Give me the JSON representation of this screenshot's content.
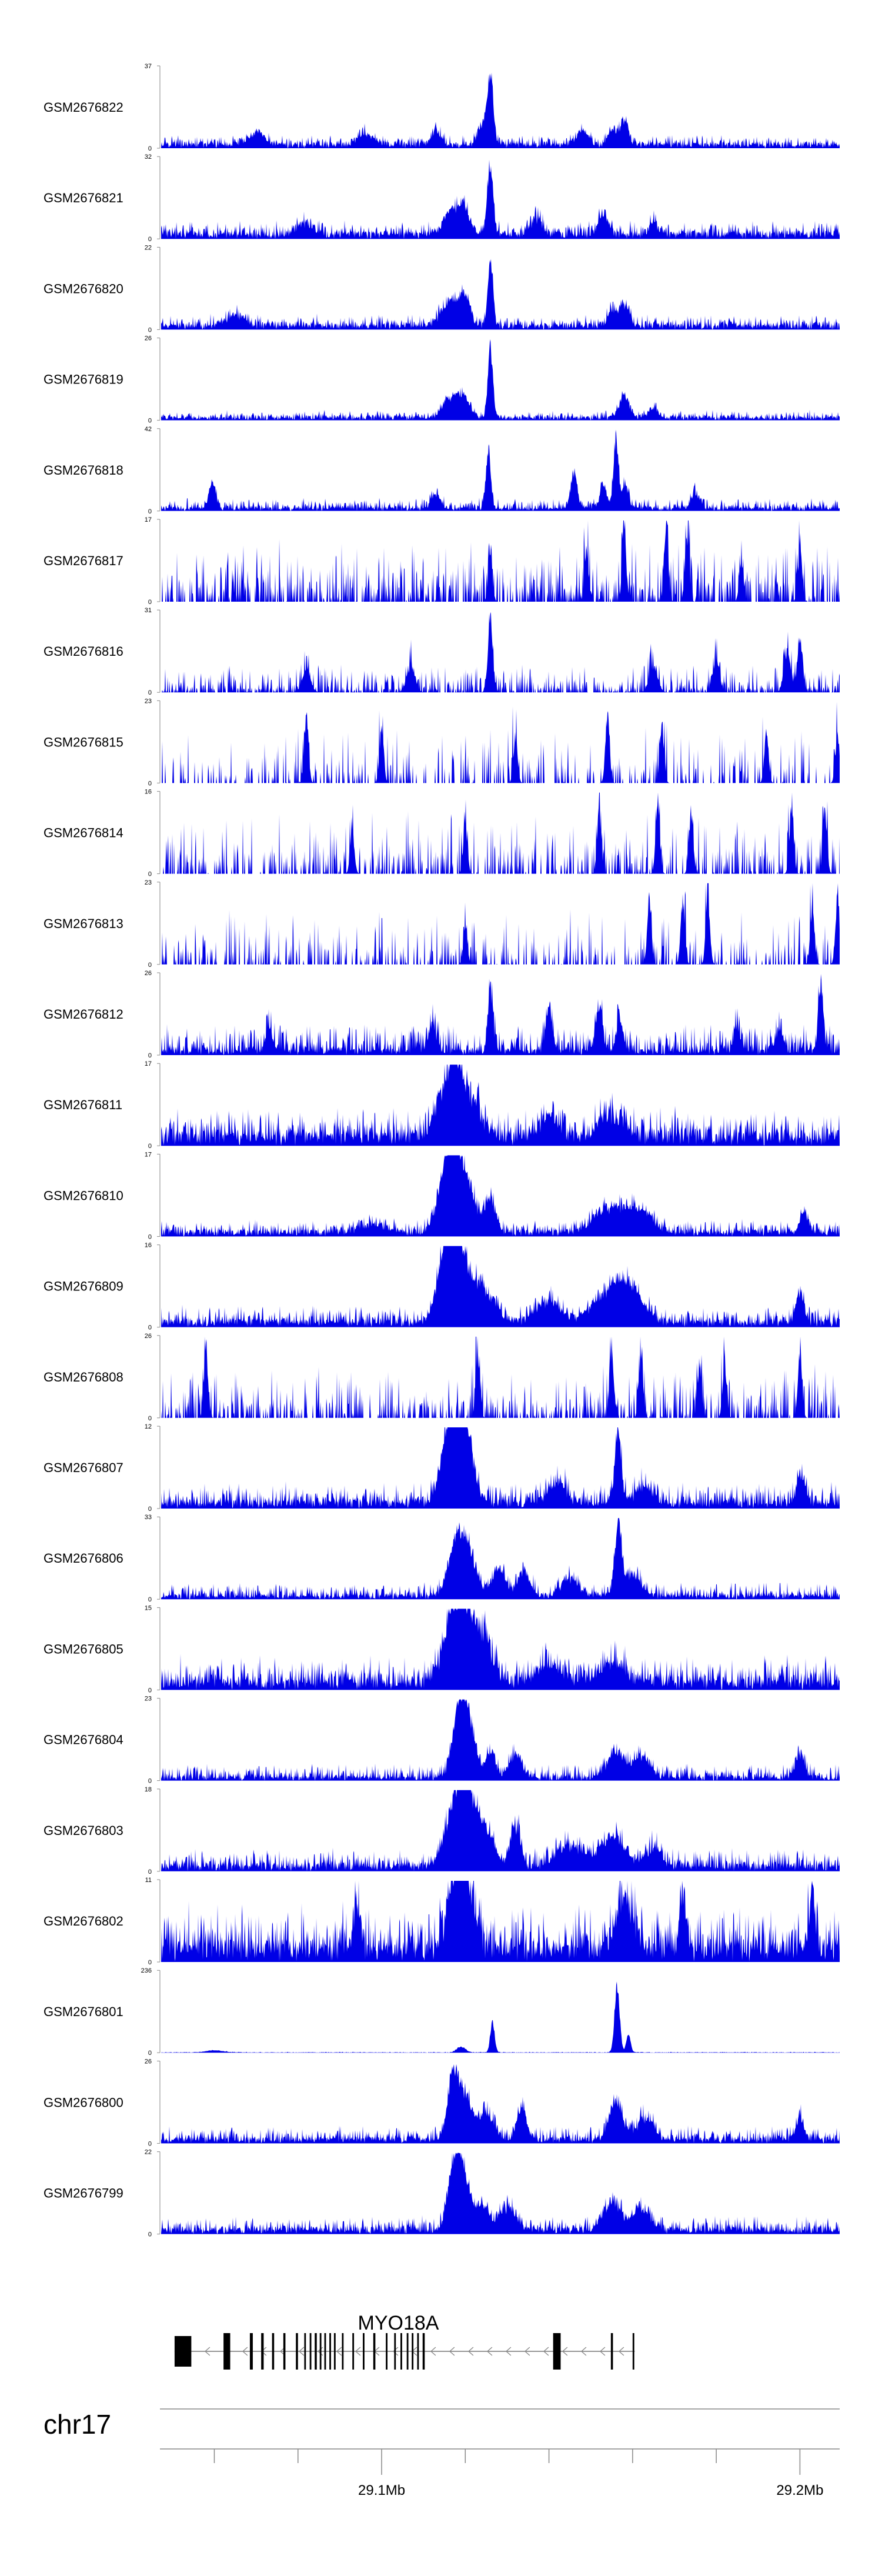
{
  "chart_data": {
    "type": "area",
    "fill_color": "#0000e6",
    "axis_color": "#888888",
    "chromosome": "chr17",
    "x_range_mb": [
      29.047,
      29.2095
    ],
    "x_ticks_mb": [
      29.06,
      29.08,
      29.1,
      29.12,
      29.14,
      29.16,
      29.18,
      29.2
    ],
    "x_tick_labels": [
      {
        "mb": 29.1,
        "label": "29.1Mb"
      },
      {
        "mb": 29.2,
        "label": "29.2Mb"
      }
    ],
    "gene": {
      "name": "MYO18A",
      "strand": "-",
      "start_mb": 29.0505,
      "end_mb": 29.1605,
      "label_mb": 29.104,
      "exons_mb": [
        [
          29.0505,
          29.0545
        ],
        [
          29.0622,
          29.0638
        ],
        [
          29.0685,
          29.0692
        ],
        [
          29.0712,
          29.0718
        ],
        [
          29.0738,
          29.0743
        ],
        [
          29.0765,
          29.077
        ],
        [
          29.0795,
          29.08
        ],
        [
          29.0815,
          29.0819
        ],
        [
          29.0828,
          29.0832
        ],
        [
          29.084,
          29.0845
        ],
        [
          29.0852,
          29.0856
        ],
        [
          29.0863,
          29.0867
        ],
        [
          29.0875,
          29.0879
        ],
        [
          29.0886,
          29.089
        ],
        [
          29.0905,
          29.0909
        ],
        [
          29.093,
          29.0934
        ],
        [
          29.0955,
          29.0959
        ],
        [
          29.098,
          29.0985
        ],
        [
          29.101,
          29.1014
        ],
        [
          29.103,
          29.1034
        ],
        [
          29.1045,
          29.1049
        ],
        [
          29.106,
          29.1064
        ],
        [
          29.1072,
          29.1076
        ],
        [
          29.1085,
          29.1089
        ],
        [
          29.1098,
          29.1103
        ],
        [
          29.141,
          29.1428
        ],
        [
          29.1548,
          29.1553
        ],
        [
          29.16,
          29.1604
        ]
      ]
    },
    "tracks": [
      {
        "name": "GSM2676822",
        "ymax": 37,
        "style": "dense",
        "base": 0.07,
        "noise": 0.1,
        "peaks": [
          [
            29.126,
            0.95,
            0.0007
          ],
          [
            29.124,
            0.28,
            0.001
          ],
          [
            29.158,
            0.35,
            0.001
          ],
          [
            29.155,
            0.2,
            0.001
          ],
          [
            29.148,
            0.18,
            0.0015
          ],
          [
            29.113,
            0.2,
            0.0012
          ],
          [
            29.07,
            0.17,
            0.002
          ],
          [
            29.096,
            0.15,
            0.002
          ]
        ]
      },
      {
        "name": "GSM2676821",
        "ymax": 32,
        "style": "dense",
        "base": 0.1,
        "noise": 0.14,
        "peaks": [
          [
            29.126,
            0.95,
            0.0007
          ],
          [
            29.117,
            0.35,
            0.002
          ],
          [
            29.12,
            0.3,
            0.0012
          ],
          [
            29.137,
            0.2,
            0.0015
          ],
          [
            29.153,
            0.28,
            0.0012
          ],
          [
            29.165,
            0.18,
            0.001
          ],
          [
            29.082,
            0.16,
            0.002
          ]
        ]
      },
      {
        "name": "GSM2676820",
        "ymax": 22,
        "style": "dense",
        "base": 0.08,
        "noise": 0.12,
        "peaks": [
          [
            29.126,
            0.95,
            0.0006
          ],
          [
            29.117,
            0.35,
            0.0025
          ],
          [
            29.12,
            0.25,
            0.0012
          ],
          [
            29.158,
            0.3,
            0.0012
          ],
          [
            29.155,
            0.2,
            0.001
          ],
          [
            29.065,
            0.16,
            0.002
          ]
        ]
      },
      {
        "name": "GSM2676819",
        "ymax": 26,
        "style": "dense",
        "base": 0.05,
        "noise": 0.08,
        "peaks": [
          [
            29.126,
            0.95,
            0.0006
          ],
          [
            29.117,
            0.3,
            0.002
          ],
          [
            29.12,
            0.2,
            0.0012
          ],
          [
            29.158,
            0.3,
            0.0012
          ],
          [
            29.165,
            0.14,
            0.001
          ]
        ]
      },
      {
        "name": "GSM2676818",
        "ymax": 42,
        "style": "dense",
        "base": 0.05,
        "noise": 0.12,
        "peaks": [
          [
            29.0595,
            0.35,
            0.0008
          ],
          [
            29.1255,
            0.75,
            0.0006
          ],
          [
            29.156,
            0.95,
            0.0006
          ],
          [
            29.146,
            0.5,
            0.0008
          ],
          [
            29.153,
            0.35,
            0.0008
          ],
          [
            29.1582,
            0.32,
            0.0008
          ],
          [
            29.113,
            0.2,
            0.001
          ],
          [
            29.175,
            0.2,
            0.001
          ]
        ]
      },
      {
        "name": "GSM2676817",
        "ymax": 17,
        "style": "sparse",
        "density": 0.5,
        "base": 0.25,
        "noise": 0.55,
        "peaks": [
          [
            29.158,
            0.9,
            0.0005
          ],
          [
            29.168,
            0.92,
            0.0005
          ],
          [
            29.173,
            0.88,
            0.0005
          ],
          [
            29.2,
            0.7,
            0.0005
          ],
          [
            29.186,
            0.6,
            0.0005
          ],
          [
            29.126,
            0.6,
            0.0005
          ],
          [
            29.149,
            0.7,
            0.0005
          ]
        ]
      },
      {
        "name": "GSM2676816",
        "ymax": 31,
        "style": "sparse",
        "density": 0.55,
        "base": 0.05,
        "noise": 0.3,
        "peaks": [
          [
            29.126,
            0.95,
            0.0006
          ],
          [
            29.2,
            0.75,
            0.0006
          ],
          [
            29.197,
            0.55,
            0.0008
          ],
          [
            29.18,
            0.45,
            0.0008
          ],
          [
            29.165,
            0.35,
            0.001
          ],
          [
            29.107,
            0.35,
            0.001
          ],
          [
            29.082,
            0.3,
            0.001
          ]
        ]
      },
      {
        "name": "GSM2676815",
        "ymax": 23,
        "style": "sparse",
        "density": 0.25,
        "base": 0.25,
        "noise": 0.5,
        "peaks": [
          [
            29.082,
            0.95,
            0.0005
          ],
          [
            29.1,
            0.8,
            0.0005
          ],
          [
            29.154,
            0.95,
            0.0005
          ],
          [
            29.167,
            0.82,
            0.0005
          ],
          [
            29.192,
            0.7,
            0.0005
          ],
          [
            29.209,
            0.7,
            0.0005
          ],
          [
            29.132,
            0.65,
            0.0005
          ]
        ]
      },
      {
        "name": "GSM2676814",
        "ymax": 16,
        "style": "sparse",
        "density": 0.4,
        "base": 0.25,
        "noise": 0.55,
        "peaks": [
          [
            29.166,
            0.95,
            0.0005
          ],
          [
            29.152,
            0.85,
            0.0005
          ],
          [
            29.174,
            0.85,
            0.0005
          ],
          [
            29.198,
            0.9,
            0.0005
          ],
          [
            29.206,
            0.8,
            0.0005
          ],
          [
            29.12,
            0.7,
            0.0005
          ],
          [
            29.093,
            0.6,
            0.0005
          ]
        ]
      },
      {
        "name": "GSM2676813",
        "ymax": 23,
        "style": "sparse",
        "density": 0.3,
        "base": 0.2,
        "noise": 0.5,
        "peaks": [
          [
            29.164,
            0.92,
            0.0005
          ],
          [
            29.172,
            0.88,
            0.0005
          ],
          [
            29.178,
            0.9,
            0.0005
          ],
          [
            29.203,
            0.8,
            0.0005
          ],
          [
            29.209,
            0.9,
            0.0005
          ],
          [
            29.12,
            0.5,
            0.0005
          ]
        ]
      },
      {
        "name": "GSM2676812",
        "ymax": 26,
        "style": "dense",
        "base": 0.08,
        "noise": 0.32,
        "peaks": [
          [
            29.126,
            0.85,
            0.0006
          ],
          [
            29.14,
            0.55,
            0.0008
          ],
          [
            29.152,
            0.6,
            0.0008
          ],
          [
            29.157,
            0.45,
            0.0008
          ],
          [
            29.195,
            0.3,
            0.0008
          ],
          [
            29.205,
            0.95,
            0.0006
          ],
          [
            29.185,
            0.35,
            0.0008
          ],
          [
            29.112,
            0.35,
            0.0008
          ],
          [
            29.073,
            0.3,
            0.0008
          ]
        ]
      },
      {
        "name": "GSM2676811",
        "ymax": 17,
        "style": "dense",
        "base": 0.2,
        "noise": 0.3,
        "peaks": [
          [
            29.1175,
            0.95,
            0.0015
          ],
          [
            29.121,
            0.55,
            0.0025
          ],
          [
            29.114,
            0.45,
            0.002
          ],
          [
            29.155,
            0.3,
            0.003
          ],
          [
            29.14,
            0.25,
            0.002
          ]
        ]
      },
      {
        "name": "GSM2676810",
        "ymax": 17,
        "style": "dense",
        "base": 0.08,
        "noise": 0.14,
        "peaks": [
          [
            29.1185,
            0.95,
            0.003
          ],
          [
            29.116,
            0.6,
            0.002
          ],
          [
            29.126,
            0.45,
            0.0012
          ],
          [
            29.155,
            0.35,
            0.004
          ],
          [
            29.162,
            0.25,
            0.003
          ],
          [
            29.098,
            0.12,
            0.003
          ],
          [
            29.201,
            0.3,
            0.001
          ]
        ]
      },
      {
        "name": "GSM2676809",
        "ymax": 16,
        "style": "dense",
        "base": 0.1,
        "noise": 0.18,
        "peaks": [
          [
            29.118,
            0.95,
            0.0025
          ],
          [
            29.115,
            0.6,
            0.002
          ],
          [
            29.124,
            0.45,
            0.003
          ],
          [
            29.155,
            0.45,
            0.004
          ],
          [
            29.16,
            0.3,
            0.003
          ],
          [
            29.14,
            0.3,
            0.003
          ],
          [
            29.2,
            0.4,
            0.001
          ]
        ]
      },
      {
        "name": "GSM2676808",
        "ymax": 26,
        "style": "sparse",
        "density": 0.45,
        "base": 0.2,
        "noise": 0.5,
        "peaks": [
          [
            29.058,
            0.95,
            0.0005
          ],
          [
            29.123,
            0.9,
            0.0005
          ],
          [
            29.155,
            0.9,
            0.0005
          ],
          [
            29.162,
            0.85,
            0.0005
          ],
          [
            29.2,
            0.82,
            0.0005
          ],
          [
            29.182,
            0.7,
            0.0005
          ],
          [
            29.176,
            0.65,
            0.0005
          ]
        ]
      },
      {
        "name": "GSM2676807",
        "ymax": 12,
        "style": "dense",
        "base": 0.12,
        "noise": 0.22,
        "peaks": [
          [
            29.118,
            0.9,
            0.002
          ],
          [
            29.12,
            0.7,
            0.002
          ],
          [
            29.115,
            0.55,
            0.0015
          ],
          [
            29.1565,
            0.95,
            0.0008
          ],
          [
            29.142,
            0.3,
            0.002
          ],
          [
            29.163,
            0.25,
            0.002
          ],
          [
            29.2,
            0.35,
            0.001
          ]
        ]
      },
      {
        "name": "GSM2676806",
        "ymax": 33,
        "style": "dense",
        "base": 0.06,
        "noise": 0.16,
        "peaks": [
          [
            29.118,
            0.7,
            0.002
          ],
          [
            29.121,
            0.45,
            0.002
          ],
          [
            29.1565,
            0.95,
            0.0008
          ],
          [
            29.128,
            0.4,
            0.0015
          ],
          [
            29.134,
            0.35,
            0.0015
          ],
          [
            29.145,
            0.25,
            0.002
          ],
          [
            29.16,
            0.3,
            0.002
          ]
        ]
      },
      {
        "name": "GSM2676805",
        "ymax": 15,
        "style": "dense",
        "base": 0.15,
        "noise": 0.3,
        "peaks": [
          [
            29.1175,
            0.95,
            0.0025
          ],
          [
            29.121,
            0.6,
            0.0025
          ],
          [
            29.125,
            0.4,
            0.002
          ],
          [
            29.155,
            0.3,
            0.003
          ],
          [
            29.14,
            0.25,
            0.003
          ]
        ]
      },
      {
        "name": "GSM2676804",
        "ymax": 23,
        "style": "dense",
        "base": 0.06,
        "noise": 0.16,
        "peaks": [
          [
            29.1185,
            0.95,
            0.0015
          ],
          [
            29.121,
            0.65,
            0.0015
          ],
          [
            29.126,
            0.35,
            0.0012
          ],
          [
            29.132,
            0.3,
            0.0015
          ],
          [
            29.156,
            0.35,
            0.002
          ],
          [
            29.162,
            0.28,
            0.002
          ],
          [
            29.2,
            0.32,
            0.001
          ]
        ]
      },
      {
        "name": "GSM2676803",
        "ymax": 18,
        "style": "dense",
        "base": 0.1,
        "noise": 0.2,
        "peaks": [
          [
            29.118,
            0.95,
            0.0025
          ],
          [
            29.121,
            0.6,
            0.002
          ],
          [
            29.125,
            0.45,
            0.002
          ],
          [
            29.132,
            0.55,
            0.0012
          ],
          [
            29.155,
            0.4,
            0.003
          ],
          [
            29.145,
            0.3,
            0.003
          ],
          [
            29.165,
            0.25,
            0.002
          ]
        ]
      },
      {
        "name": "GSM2676802",
        "ymax": 11,
        "style": "dense",
        "base": 0.28,
        "noise": 0.48,
        "peaks": [
          [
            29.118,
            0.9,
            0.002
          ],
          [
            29.12,
            0.75,
            0.002
          ],
          [
            29.158,
            0.7,
            0.002
          ],
          [
            29.203,
            0.8,
            0.0008
          ],
          [
            29.172,
            0.7,
            0.0008
          ],
          [
            29.094,
            0.6,
            0.0008
          ]
        ]
      },
      {
        "name": "GSM2676801",
        "ymax": 236,
        "style": "dense",
        "base": 0.004,
        "noise": 0.008,
        "peaks": [
          [
            29.1563,
            0.95,
            0.0006
          ],
          [
            29.159,
            0.25,
            0.0005
          ],
          [
            29.1265,
            0.45,
            0.0005
          ],
          [
            29.119,
            0.08,
            0.001
          ],
          [
            29.06,
            0.03,
            0.002
          ]
        ]
      },
      {
        "name": "GSM2676800",
        "ymax": 26,
        "style": "dense",
        "base": 0.07,
        "noise": 0.16,
        "peaks": [
          [
            29.117,
            0.95,
            0.0012
          ],
          [
            29.12,
            0.6,
            0.0015
          ],
          [
            29.125,
            0.35,
            0.002
          ],
          [
            29.1335,
            0.45,
            0.0012
          ],
          [
            29.156,
            0.55,
            0.0015
          ],
          [
            29.163,
            0.3,
            0.002
          ],
          [
            29.2,
            0.3,
            0.001
          ]
        ]
      },
      {
        "name": "GSM2676799",
        "ymax": 22,
        "style": "dense",
        "base": 0.08,
        "noise": 0.16,
        "peaks": [
          [
            29.1175,
            0.95,
            0.0015
          ],
          [
            29.12,
            0.55,
            0.0015
          ],
          [
            29.124,
            0.35,
            0.0015
          ],
          [
            29.13,
            0.3,
            0.002
          ],
          [
            29.155,
            0.4,
            0.002
          ],
          [
            29.162,
            0.3,
            0.002
          ]
        ]
      }
    ]
  }
}
